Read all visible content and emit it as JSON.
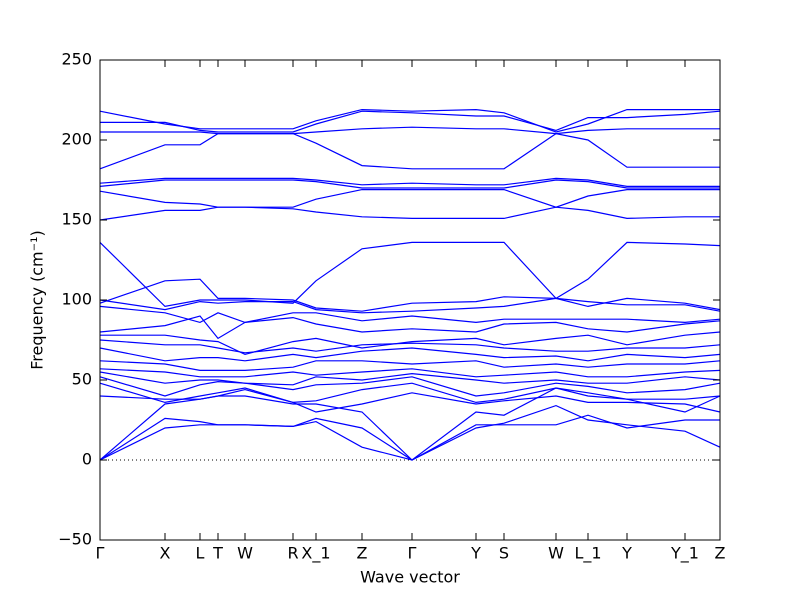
{
  "chart_data": {
    "type": "line",
    "xlabel": "Wave vector",
    "ylabel": "Frequency (cm⁻¹)",
    "color": "#0000ff",
    "reference_line": 0,
    "xlim": [
      0,
      620
    ],
    "ylim": [
      -50,
      250
    ],
    "xticks": [
      {
        "value": 0,
        "label": "Γ"
      },
      {
        "value": 65,
        "label": "X"
      },
      {
        "value": 100,
        "label": "L"
      },
      {
        "value": 118,
        "label": "T"
      },
      {
        "value": 145,
        "label": "W"
      },
      {
        "value": 193,
        "label": "R"
      },
      {
        "value": 216,
        "label": "X_1"
      },
      {
        "value": 262,
        "label": "Z"
      },
      {
        "value": 312,
        "label": "Γ"
      },
      {
        "value": 376,
        "label": "Y"
      },
      {
        "value": 404,
        "label": "S"
      },
      {
        "value": 456,
        "label": "W"
      },
      {
        "value": 488,
        "label": "L_1"
      },
      {
        "value": 527,
        "label": "Y"
      },
      {
        "value": 585,
        "label": "Y_1"
      },
      {
        "value": 620,
        "label": "Z"
      }
    ],
    "yticks": [
      {
        "value": -50,
        "label": "−50"
      },
      0,
      50,
      100,
      150,
      200,
      250
    ],
    "x": [
      0,
      65,
      100,
      118,
      145,
      193,
      216,
      262,
      312,
      376,
      404,
      456,
      488,
      527,
      585,
      620
    ],
    "series": [
      {
        "values": [
          218,
          210,
          207,
          207,
          207,
          207,
          212,
          219,
          218,
          219,
          217,
          205,
          210,
          219,
          219,
          219
        ]
      },
      {
        "values": [
          211,
          211,
          206,
          205,
          205,
          205,
          210,
          218,
          217,
          215,
          215,
          206,
          214,
          214,
          216,
          218
        ]
      },
      {
        "values": [
          205,
          205,
          205,
          204,
          204,
          204,
          205,
          207,
          208,
          207,
          207,
          204,
          206,
          207,
          207,
          207
        ]
      },
      {
        "values": [
          182,
          197,
          197,
          204,
          204,
          204,
          198,
          184,
          182,
          182,
          182,
          204,
          200,
          183,
          183,
          183
        ]
      },
      {
        "values": [
          173,
          176,
          176,
          176,
          176,
          176,
          175,
          172,
          173,
          172,
          172,
          176,
          175,
          171,
          171,
          171
        ]
      },
      {
        "values": [
          171,
          175,
          175,
          175,
          175,
          175,
          174,
          170,
          170,
          170,
          170,
          175,
          174,
          170,
          170,
          170
        ]
      },
      {
        "values": [
          168,
          161,
          160,
          158,
          158,
          158,
          163,
          169,
          169,
          169,
          169,
          158,
          165,
          169,
          169,
          169
        ]
      },
      {
        "values": [
          150,
          156,
          156,
          158,
          158,
          157,
          155,
          152,
          151,
          151,
          151,
          158,
          156,
          151,
          152,
          152
        ]
      },
      {
        "values": [
          136,
          96,
          100,
          100,
          100,
          98,
          112,
          132,
          136,
          136,
          136,
          101,
          113,
          136,
          135,
          134
        ]
      },
      {
        "values": [
          98,
          112,
          113,
          101,
          101,
          100,
          95,
          93,
          98,
          99,
          102,
          101,
          99,
          97,
          97,
          93
        ]
      },
      {
        "values": [
          100,
          94,
          99,
          98,
          99,
          99,
          94,
          92,
          93,
          95,
          96,
          101,
          96,
          101,
          98,
          94
        ]
      },
      {
        "values": [
          96,
          92,
          86,
          92,
          86,
          92,
          92,
          87,
          90,
          86,
          88,
          88,
          88,
          88,
          86,
          88
        ]
      },
      {
        "values": [
          80,
          84,
          90,
          76,
          86,
          89,
          85,
          80,
          82,
          80,
          85,
          86,
          82,
          80,
          85,
          87
        ]
      },
      {
        "values": [
          78,
          78,
          75,
          74,
          66,
          74,
          76,
          70,
          74,
          76,
          72,
          76,
          78,
          72,
          78,
          80
        ]
      },
      {
        "values": [
          75,
          72,
          72,
          70,
          67,
          70,
          68,
          72,
          73,
          72,
          70,
          68,
          68,
          70,
          70,
          72
        ]
      },
      {
        "values": [
          70,
          62,
          64,
          64,
          62,
          66,
          64,
          68,
          70,
          66,
          64,
          65,
          62,
          66,
          64,
          66
        ]
      },
      {
        "values": [
          62,
          60,
          56,
          56,
          56,
          58,
          62,
          62,
          60,
          62,
          58,
          60,
          58,
          60,
          60,
          62
        ]
      },
      {
        "values": [
          57,
          55,
          52,
          52,
          52,
          55,
          53,
          55,
          57,
          52,
          53,
          55,
          52,
          52,
          55,
          56
        ]
      },
      {
        "values": [
          55,
          48,
          50,
          50,
          48,
          47,
          52,
          50,
          54,
          50,
          48,
          50,
          48,
          48,
          52,
          50
        ]
      },
      {
        "values": [
          52,
          40,
          47,
          49,
          48,
          44,
          47,
          48,
          52,
          40,
          42,
          48,
          46,
          42,
          44,
          48
        ]
      },
      {
        "values": [
          48,
          36,
          40,
          42,
          45,
          36,
          37,
          44,
          48,
          36,
          38,
          45,
          42,
          38,
          38,
          40
        ]
      },
      {
        "values": [
          40,
          38,
          38,
          40,
          44,
          36,
          30,
          35,
          42,
          35,
          37,
          40,
          36,
          36,
          35,
          30
        ]
      },
      {
        "values": [
          0,
          35,
          38,
          40,
          40,
          35,
          35,
          30,
          0,
          30,
          28,
          45,
          40,
          38,
          30,
          40
        ]
      },
      {
        "values": [
          0,
          26,
          24,
          22,
          22,
          21,
          26,
          20,
          0,
          22,
          22,
          22,
          28,
          20,
          25,
          25
        ]
      },
      {
        "values": [
          0,
          20,
          22,
          22,
          22,
          21,
          24,
          8,
          0,
          20,
          23,
          34,
          25,
          22,
          18,
          8
        ]
      }
    ]
  }
}
